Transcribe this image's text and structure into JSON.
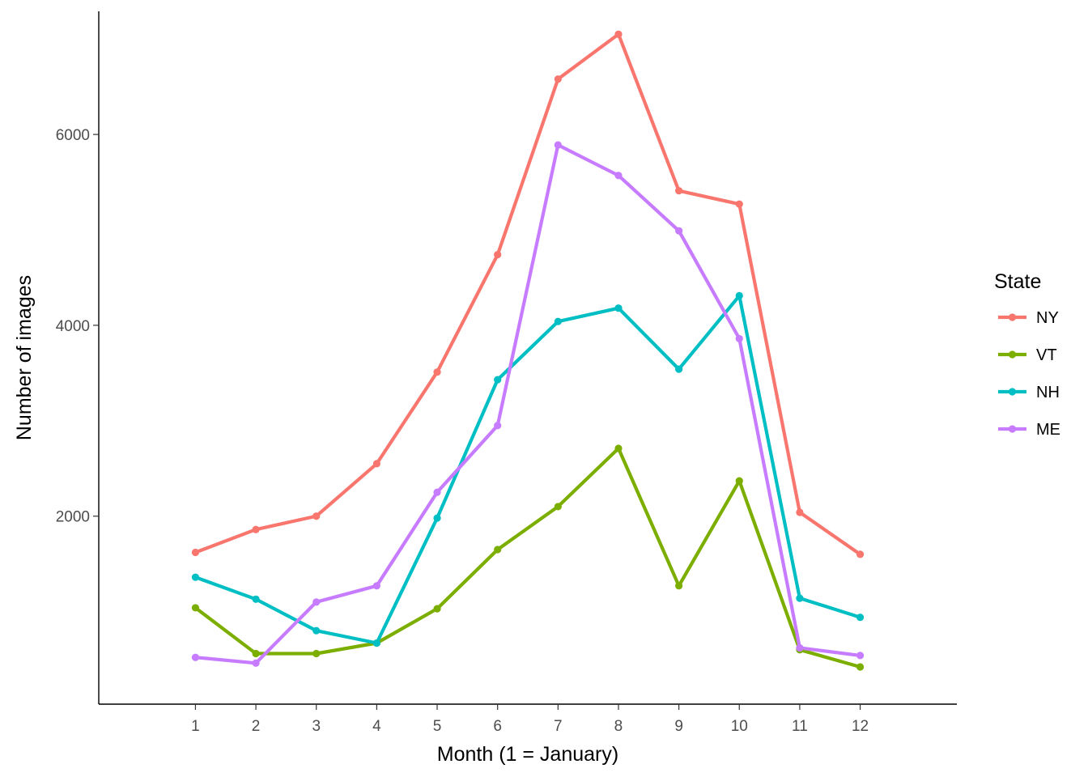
{
  "chart_data": {
    "type": "line",
    "title": "",
    "xlabel": "Month (1 = January)",
    "ylabel": "Number of images",
    "x": [
      1,
      2,
      3,
      4,
      5,
      6,
      7,
      8,
      9,
      10,
      11,
      12
    ],
    "x_tick_labels": [
      "1",
      "2",
      "3",
      "4",
      "5",
      "6",
      "7",
      "8",
      "9",
      "10",
      "11",
      "12"
    ],
    "y_ticks": [
      2000,
      4000,
      6000
    ],
    "y_tick_labels": [
      "2000",
      "4000",
      "6000"
    ],
    "xlim": [
      -0.6,
      13.6
    ],
    "ylim": [
      30,
      7290
    ],
    "grid": false,
    "legend_placement": "right",
    "legend_title": "State",
    "series": [
      {
        "name": "NY",
        "color": "#F8766D",
        "values": [
          1620,
          1860,
          2000,
          2550,
          3510,
          4740,
          6580,
          7050,
          5410,
          5270,
          2040,
          1600
        ]
      },
      {
        "name": "VT",
        "color": "#7CAE00",
        "values": [
          1040,
          560,
          560,
          670,
          1030,
          1650,
          2100,
          2710,
          1270,
          2370,
          600,
          420
        ]
      },
      {
        "name": "NH",
        "color": "#00BFC4",
        "values": [
          1360,
          1130,
          800,
          670,
          1980,
          3430,
          4040,
          4180,
          3540,
          4310,
          1140,
          940
        ]
      },
      {
        "name": "ME",
        "color": "#C77CFF",
        "values": [
          520,
          460,
          1100,
          1270,
          2250,
          2950,
          5890,
          5570,
          4990,
          3860,
          620,
          540
        ]
      }
    ]
  }
}
